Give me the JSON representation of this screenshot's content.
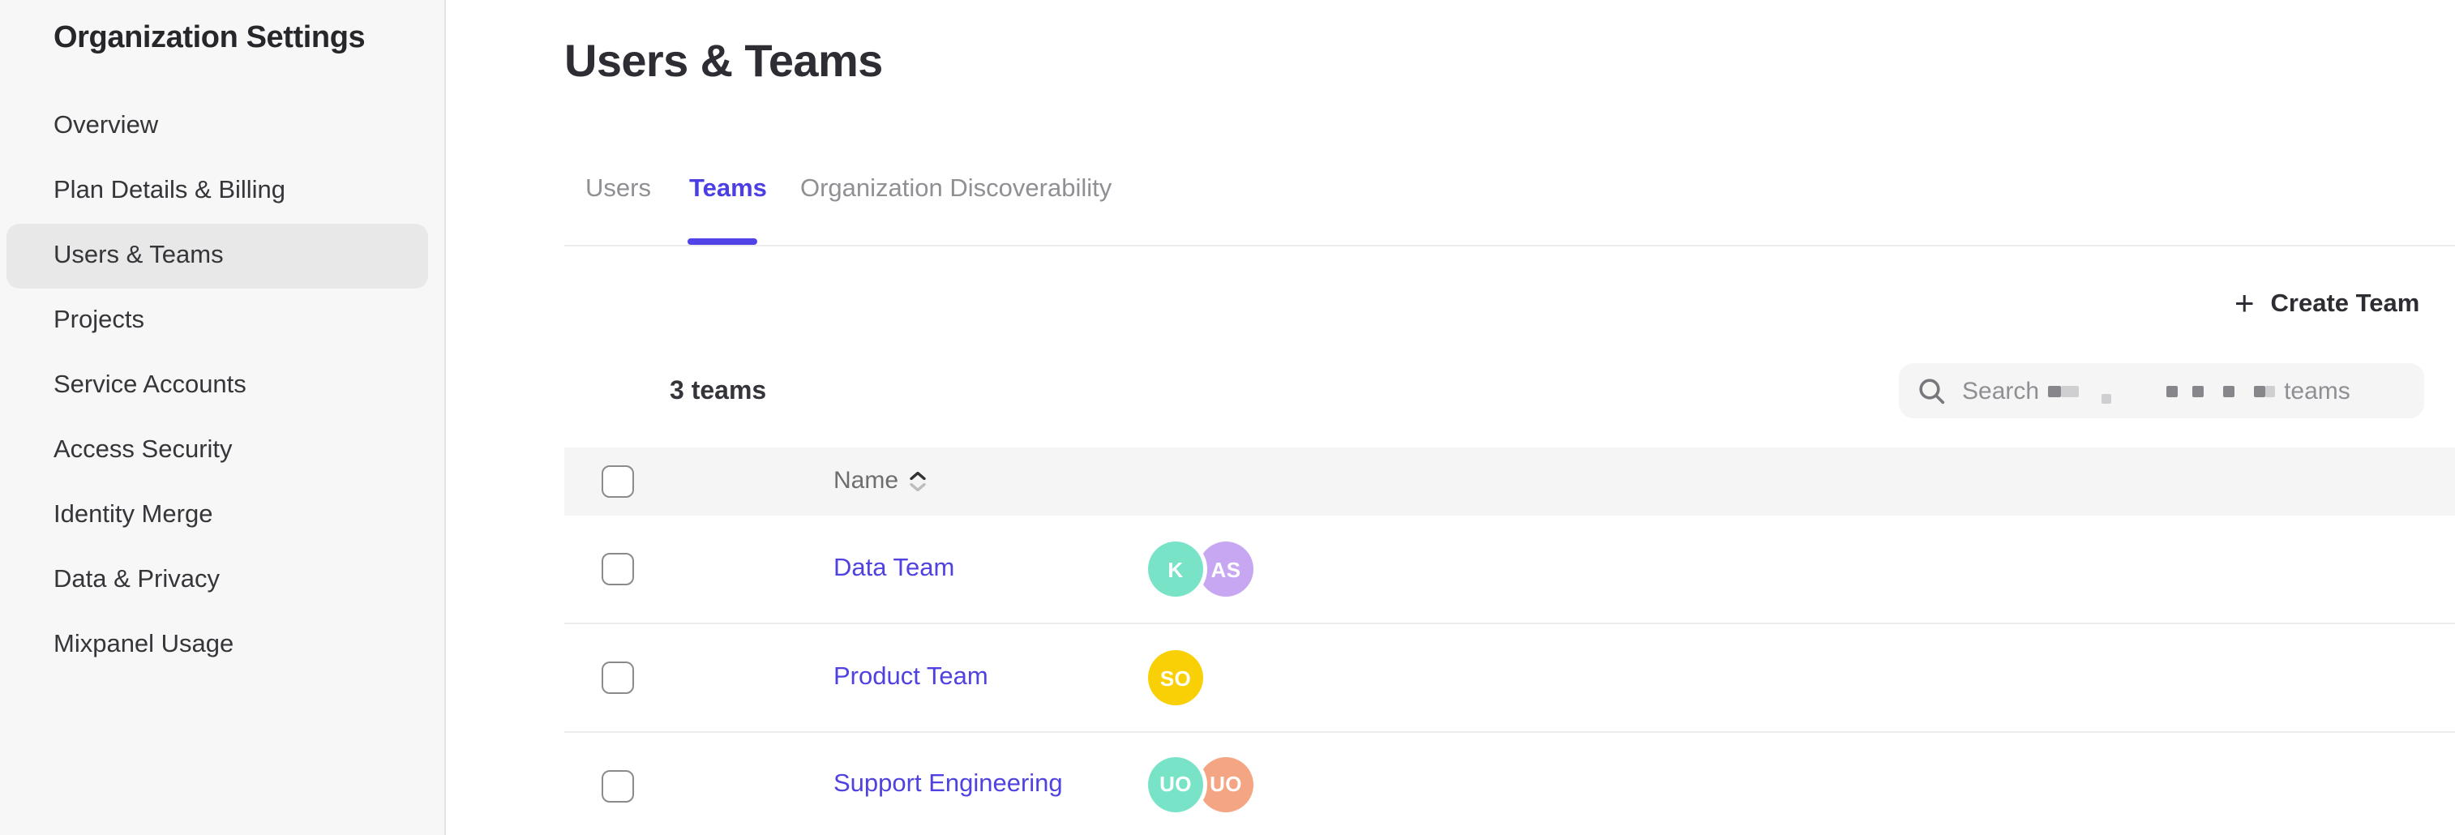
{
  "sidebar": {
    "title": "Organization Settings",
    "items": [
      {
        "label": "Overview",
        "active": false
      },
      {
        "label": "Plan Details & Billing",
        "active": false
      },
      {
        "label": "Users & Teams",
        "active": true
      },
      {
        "label": "Projects",
        "active": false
      },
      {
        "label": "Service Accounts",
        "active": false
      },
      {
        "label": "Access Security",
        "active": false
      },
      {
        "label": "Identity Merge",
        "active": false
      },
      {
        "label": "Data & Privacy",
        "active": false
      },
      {
        "label": "Mixpanel Usage",
        "active": false
      }
    ]
  },
  "header": {
    "title": "Users & Teams"
  },
  "tabs": [
    {
      "label": "Users",
      "active": false
    },
    {
      "label": "Teams",
      "active": true
    },
    {
      "label": "Organization Discoverability",
      "active": false
    }
  ],
  "toolbar": {
    "create_team_label": "Create Team",
    "plus_glyph": "+",
    "count_label": "3 teams"
  },
  "search": {
    "prefix": "Search",
    "suffix": "teams"
  },
  "table": {
    "columns": [
      {
        "label": "Name",
        "sortable": true
      }
    ],
    "rows": [
      {
        "name": "Data Team",
        "avatars": [
          {
            "initials": "K",
            "color": "#79e3c8"
          },
          {
            "initials": "AS",
            "color": "#c7a7f2"
          }
        ]
      },
      {
        "name": "Product Team",
        "avatars": [
          {
            "initials": "SO",
            "color": "#f9d005"
          }
        ]
      },
      {
        "name": "Support Engineering",
        "avatars": [
          {
            "initials": "UO",
            "color": "#79e3c8"
          },
          {
            "initials": "UO",
            "color": "#f4a583"
          }
        ]
      }
    ]
  },
  "colors": {
    "accent": "#4b3fe4",
    "link": "#4f42e0",
    "sidebar_bg": "#f7f7f7",
    "band_bg": "#f5f5f6"
  }
}
